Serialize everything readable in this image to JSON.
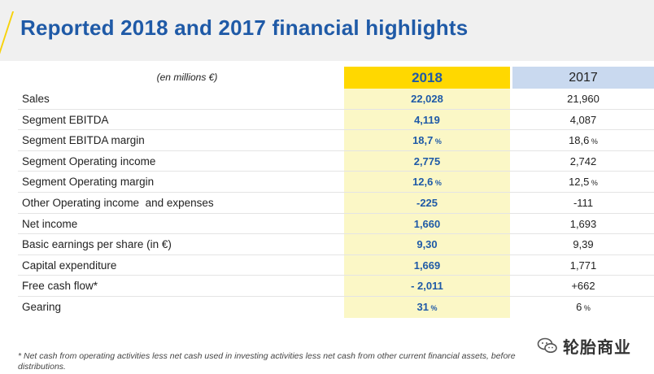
{
  "title": "Reported 2018 and 2017 financial highlights",
  "table": {
    "unit_label": "(en millions €)",
    "col_2018": "2018",
    "col_2017": "2017",
    "rows": [
      {
        "label": "Sales",
        "v2018": "22,028",
        "v2018_pct": "",
        "v2017": "21,960",
        "v2017_pct": ""
      },
      {
        "label": "Segment EBITDA",
        "v2018": "4,119",
        "v2018_pct": "",
        "v2017": "4,087",
        "v2017_pct": ""
      },
      {
        "label": "Segment EBITDA margin",
        "v2018": "18,7",
        "v2018_pct": " %",
        "v2017": "18,6",
        "v2017_pct": " %"
      },
      {
        "label": "Segment Operating income",
        "v2018": "2,775",
        "v2018_pct": "",
        "v2017": "2,742",
        "v2017_pct": ""
      },
      {
        "label": "Segment Operating margin",
        "v2018": "12,6",
        "v2018_pct": " %",
        "v2017": "12,5",
        "v2017_pct": " %"
      },
      {
        "label": "Other Operating income  and expenses",
        "v2018": "-225",
        "v2018_pct": "",
        "v2017": "-111",
        "v2017_pct": ""
      },
      {
        "label": "Net income",
        "v2018": "1,660",
        "v2018_pct": "",
        "v2017": "1,693",
        "v2017_pct": ""
      },
      {
        "label": "Basic earnings per share (in €)",
        "v2018": "9,30",
        "v2018_pct": "",
        "v2017": "9,39",
        "v2017_pct": ""
      },
      {
        "label": "Capital expenditure",
        "v2018": "1,669",
        "v2018_pct": "",
        "v2017": "1,771",
        "v2017_pct": ""
      },
      {
        "label": "Free cash flow*",
        "v2018": "- 2,011",
        "v2018_pct": "",
        "v2017": "+662",
        "v2017_pct": ""
      },
      {
        "label": "Gearing",
        "v2018": "31",
        "v2018_pct": " %",
        "v2017": "6",
        "v2017_pct": " %"
      }
    ]
  },
  "footnote": "* Net cash from operating activities less net cash used in investing activities less net cash from other current financial assets, before distributions.",
  "watermark": {
    "text": "轮胎商业",
    "icon": "wechat-icon"
  },
  "colors": {
    "title": "#1f5aa7",
    "accent_yellow": "#ffd800",
    "col_2018_bg": "#fbf7c6",
    "col_2017_head": "#c9d9ef"
  }
}
